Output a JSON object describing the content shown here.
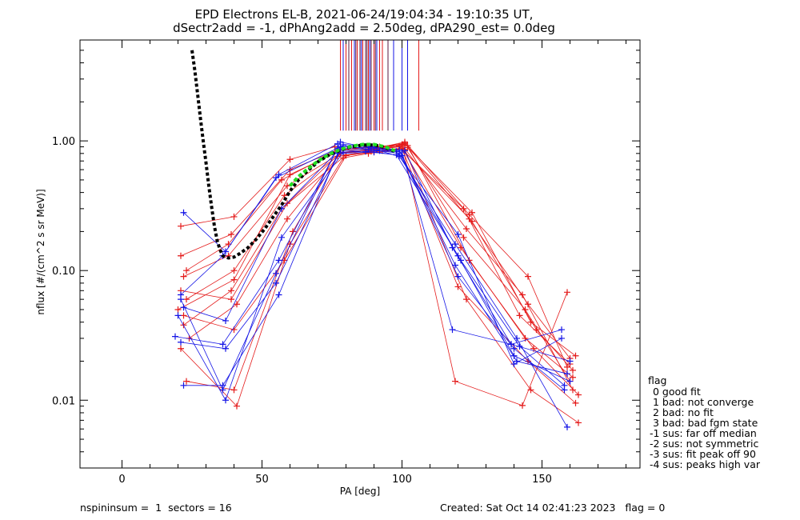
{
  "chart_data": {
    "type": "scatter",
    "title": "EPD Electrons EL-B, 2021-06-24/19:04:34 - 19:10:35 UT,",
    "subtitle": "dSectr2add = -1, dPhAng2add = 2.50deg, dPA290_est=   0.0deg",
    "xlabel": "PA [deg]",
    "ylabel": "nflux [#/(cm^2 s sr MeV)]",
    "xlim": [
      -15,
      185
    ],
    "ylim": [
      0.003,
      6.0
    ],
    "yscale": "log",
    "x_ticks": [
      {
        "value": 0,
        "label": "0"
      },
      {
        "value": 50,
        "label": "50"
      },
      {
        "value": 100,
        "label": "100"
      },
      {
        "value": 150,
        "label": "150"
      }
    ],
    "y_ticks": [
      {
        "value": 0.01,
        "label": "0.01"
      },
      {
        "value": 0.1,
        "label": "0.10"
      },
      {
        "value": 1.0,
        "label": "1.00"
      }
    ],
    "colors": {
      "red": "#e41a1a",
      "blue": "#1414e6",
      "fit_black": "#000000",
      "fit_green": "#22dd22",
      "marker_dark": "#5a1a40"
    },
    "series": [
      {
        "color": "red",
        "x": [
          21,
          40,
          60,
          76,
          91,
          101,
          124,
          145,
          159
        ],
        "y": [
          0.22,
          0.26,
          0.72,
          0.9,
          0.88,
          0.98,
          0.27,
          0.09,
          0.018
        ]
      },
      {
        "color": "red",
        "x": [
          21,
          39,
          60,
          77,
          88,
          100,
          123,
          143,
          161
        ],
        "y": [
          0.13,
          0.19,
          0.6,
          0.85,
          0.9,
          0.93,
          0.21,
          0.065,
          0.012
        ]
      },
      {
        "color": "red",
        "x": [
          22,
          38,
          59,
          78,
          90,
          99,
          122,
          142,
          160
        ],
        "y": [
          0.09,
          0.13,
          0.45,
          0.8,
          0.85,
          0.9,
          0.3,
          0.045,
          0.019
        ]
      },
      {
        "color": "red",
        "x": [
          23,
          40,
          58,
          79,
          92,
          101,
          125,
          146,
          162
        ],
        "y": [
          0.06,
          0.1,
          0.38,
          0.82,
          0.87,
          0.95,
          0.28,
          0.04,
          0.022
        ]
      },
      {
        "color": "red",
        "x": [
          22,
          39,
          57,
          80,
          89,
          100,
          121,
          144,
          161
        ],
        "y": [
          0.038,
          0.07,
          0.3,
          0.78,
          0.83,
          0.88,
          0.15,
          0.03,
          0.015
        ]
      },
      {
        "color": "red",
        "x": [
          24,
          41,
          59,
          78,
          91,
          102,
          124,
          147,
          163
        ],
        "y": [
          0.03,
          0.055,
          0.25,
          0.8,
          0.86,
          0.92,
          0.12,
          0.025,
          0.011
        ]
      },
      {
        "color": "red",
        "x": [
          23,
          40,
          61,
          77,
          90,
          100,
          120,
          145,
          162
        ],
        "y": [
          0.014,
          0.012,
          0.2,
          0.76,
          0.82,
          0.87,
          0.075,
          0.02,
          0.0095
        ]
      },
      {
        "color": "red",
        "x": [
          21,
          41,
          60,
          79,
          88,
          101,
          123,
          146,
          163
        ],
        "y": [
          0.025,
          0.009,
          0.16,
          0.74,
          0.8,
          0.86,
          0.06,
          0.012,
          0.0067
        ]
      },
      {
        "color": "red",
        "x": [
          22,
          40,
          58,
          80,
          93,
          102,
          122,
          144,
          160
        ],
        "y": [
          0.045,
          0.035,
          0.12,
          0.77,
          0.84,
          0.89,
          0.18,
          0.05,
          0.014
        ]
      },
      {
        "color": "red",
        "x": [
          21,
          39,
          59,
          78,
          89,
          99,
          125,
          148,
          161
        ],
        "y": [
          0.07,
          0.06,
          0.33,
          0.81,
          0.86,
          0.91,
          0.24,
          0.035,
          0.017
        ]
      },
      {
        "color": "red",
        "x": [
          23,
          38,
          57,
          77,
          91,
          100,
          119,
          143,
          159
        ],
        "y": [
          0.1,
          0.16,
          0.5,
          0.84,
          0.88,
          0.94,
          0.014,
          0.0091,
          0.068
        ]
      },
      {
        "color": "red",
        "x": [
          20,
          40,
          60,
          79,
          92,
          101,
          124,
          145,
          160
        ],
        "y": [
          0.05,
          0.085,
          0.55,
          0.86,
          0.9,
          0.96,
          0.25,
          0.055,
          0.021
        ]
      },
      {
        "color": "blue",
        "x": [
          22,
          37,
          56,
          77,
          89,
          99,
          120,
          140,
          158
        ],
        "y": [
          0.28,
          0.14,
          0.55,
          0.95,
          0.9,
          0.85,
          0.09,
          0.025,
          0.012
        ]
      },
      {
        "color": "blue",
        "x": [
          21,
          36,
          55,
          78,
          90,
          98,
          119,
          141,
          159
        ],
        "y": [
          0.065,
          0.13,
          0.52,
          0.9,
          0.88,
          0.83,
          0.16,
          0.03,
          0.0062
        ]
      },
      {
        "color": "blue",
        "x": [
          22,
          37,
          57,
          79,
          88,
          100,
          118,
          139,
          157
        ],
        "y": [
          0.052,
          0.041,
          0.3,
          0.92,
          0.86,
          0.82,
          0.035,
          0.027,
          0.035
        ]
      },
      {
        "color": "blue",
        "x": [
          19,
          36,
          56,
          77,
          91,
          99,
          120,
          140,
          160
        ],
        "y": [
          0.031,
          0.027,
          0.12,
          0.88,
          0.85,
          0.8,
          0.13,
          0.022,
          0.014
        ]
      },
      {
        "color": "blue",
        "x": [
          21,
          37,
          55,
          78,
          87,
          98,
          121,
          142,
          158
        ],
        "y": [
          0.028,
          0.025,
          0.08,
          0.85,
          0.83,
          0.78,
          0.12,
          0.026,
          0.013
        ]
      },
      {
        "color": "blue",
        "x": [
          22,
          36,
          56,
          77,
          90,
          100,
          119,
          141,
          159
        ],
        "y": [
          0.013,
          0.013,
          0.065,
          0.8,
          0.82,
          0.77,
          0.11,
          0.02,
          0.016
        ]
      },
      {
        "color": "blue",
        "x": [
          20,
          37,
          57,
          79,
          92,
          99,
          120,
          140,
          157
        ],
        "y": [
          0.045,
          0.01,
          0.18,
          0.82,
          0.84,
          0.76,
          0.19,
          0.019,
          0.03
        ]
      },
      {
        "color": "blue",
        "x": [
          21,
          36,
          55,
          78,
          89,
          101,
          118,
          139,
          160
        ],
        "y": [
          0.06,
          0.012,
          0.095,
          0.98,
          0.88,
          0.84,
          0.15,
          0.027,
          0.02
        ]
      }
    ],
    "fit_curve": {
      "x": [
        25,
        26,
        27,
        28,
        29,
        30,
        31,
        32,
        33,
        34,
        35,
        36,
        38,
        40,
        42,
        45,
        48,
        51,
        54,
        57,
        60,
        63,
        66,
        70,
        74,
        78,
        82,
        86,
        90,
        94,
        98
      ],
      "y": [
        5.0,
        3.5,
        2.3,
        1.5,
        1.0,
        0.68,
        0.45,
        0.31,
        0.22,
        0.17,
        0.145,
        0.13,
        0.125,
        0.127,
        0.135,
        0.15,
        0.175,
        0.21,
        0.26,
        0.32,
        0.41,
        0.5,
        0.58,
        0.69,
        0.78,
        0.85,
        0.9,
        0.93,
        0.93,
        0.89,
        0.82
      ]
    },
    "fit_peak": {
      "x": [
        60,
        63,
        66,
        70,
        74,
        78,
        82,
        86,
        90,
        94,
        98
      ],
      "y": [
        0.45,
        0.53,
        0.6,
        0.7,
        0.79,
        0.86,
        0.91,
        0.94,
        0.94,
        0.9,
        0.83
      ]
    },
    "pa_marker_lines": {
      "values": [
        78,
        79,
        80,
        81,
        82,
        83,
        83.5,
        84,
        85,
        85.5,
        86,
        87,
        87.5,
        88,
        88.5,
        89,
        90,
        90.5,
        91,
        92,
        93,
        95,
        97,
        100,
        102,
        106
      ],
      "line_colors": [
        "red",
        "blue",
        "red",
        "dark",
        "red",
        "blue",
        "dark",
        "red",
        "dark",
        "blue",
        "red",
        "dark",
        "dark",
        "red",
        "blue",
        "dark",
        "red",
        "dark",
        "blue",
        "red",
        "red",
        "dark",
        "blue",
        "blue",
        "blue",
        "red"
      ],
      "y_bottom": 1.2,
      "y_top": 6.0
    },
    "legend_title": "flag",
    "legend": [
      " 0 good fit",
      " 1 bad: not converge",
      " 2 bad: no fit",
      " 3 bad: bad fgm state",
      "-1 sus: far off median",
      "-2 sus: not symmetric",
      "-3 sus: fit peak off 90",
      "-4 sus: peaks high var"
    ]
  },
  "footer": {
    "left": "nspininsum =  1  sectors = 16",
    "right": "Created: Sat Oct 14 02:41:23 2023   flag = 0"
  }
}
